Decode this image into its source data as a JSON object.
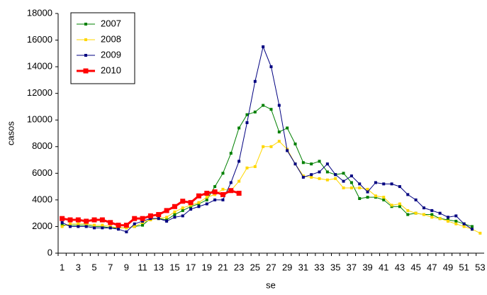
{
  "chart_data": {
    "type": "line",
    "x_label": "se",
    "y_label": "casos",
    "categories": [
      1,
      null,
      3,
      null,
      5,
      null,
      7,
      null,
      9,
      null,
      11,
      null,
      13,
      null,
      15,
      null,
      17,
      null,
      19,
      null,
      21,
      null,
      23,
      null,
      25,
      null,
      27,
      null,
      29,
      null,
      31,
      null,
      33,
      null,
      35,
      null,
      37,
      null,
      39,
      null,
      41,
      null,
      43,
      null,
      45,
      null,
      47,
      null,
      49,
      null,
      51,
      null,
      53
    ],
    "ylim": [
      0,
      18000
    ],
    "yticks": [
      0,
      2000,
      4000,
      6000,
      8000,
      10000,
      12000,
      14000,
      16000,
      18000
    ],
    "legend": "upper left",
    "series": [
      {
        "name": "2007",
        "color": "#008000",
        "values": [
          2100,
          2100,
          2100,
          2100,
          2000,
          2000,
          1900,
          1900,
          1900,
          2000,
          2100,
          2600,
          2600,
          2500,
          2900,
          3200,
          3500,
          3700,
          4000,
          5000,
          6000,
          7500,
          9400,
          10400,
          10600,
          11100,
          10800,
          9100,
          9400,
          8200,
          6800,
          6700,
          6900,
          6100,
          5900,
          6000,
          5300,
          4100,
          4200,
          4200,
          4000,
          3500,
          3500,
          2900,
          3000,
          2900,
          2900,
          2600,
          2500,
          2400,
          2200,
          2000,
          null
        ]
      },
      {
        "name": "2008",
        "color": "#ffd700",
        "values": [
          2000,
          2200,
          2200,
          2200,
          2100,
          2100,
          2000,
          1900,
          1900,
          2000,
          2300,
          2500,
          2600,
          2700,
          3100,
          3400,
          3600,
          3800,
          4200,
          4400,
          4800,
          4700,
          5400,
          6400,
          6500,
          8000,
          8000,
          8400,
          7800,
          6700,
          5800,
          5700,
          5600,
          5500,
          5600,
          4900,
          4900,
          4900,
          4800,
          4300,
          4200,
          3600,
          3700,
          3200,
          3000,
          2900,
          2700,
          2600,
          2400,
          2200,
          2000,
          1800,
          1500
        ]
      },
      {
        "name": "2009",
        "color": "#000080",
        "values": [
          2300,
          2000,
          2000,
          2000,
          1900,
          1900,
          1900,
          1800,
          1600,
          2200,
          2400,
          2600,
          2600,
          2400,
          2700,
          2800,
          3300,
          3500,
          3700,
          4000,
          4000,
          5300,
          6900,
          9800,
          12900,
          15500,
          14000,
          11100,
          7700,
          6700,
          5700,
          5900,
          6100,
          6700,
          5900,
          5400,
          5800,
          5200,
          4600,
          5300,
          5200,
          5200,
          5000,
          4400,
          4000,
          3400,
          3200,
          3000,
          2700,
          2800,
          2200,
          1800,
          null
        ]
      },
      {
        "name": "2010",
        "color": "#ff0000",
        "values": [
          2600,
          2500,
          2500,
          2400,
          2500,
          2500,
          2300,
          2100,
          2100,
          2600,
          2600,
          2800,
          2900,
          3200,
          3500,
          3900,
          3800,
          4300,
          4500,
          4600,
          4400,
          4700,
          4500,
          null,
          null,
          null,
          null,
          null,
          null,
          null,
          null,
          null,
          null,
          null,
          null,
          null,
          null,
          null,
          null,
          null,
          null,
          null,
          null,
          null,
          null,
          null,
          null,
          null,
          null,
          null,
          null,
          null,
          null
        ]
      }
    ]
  }
}
